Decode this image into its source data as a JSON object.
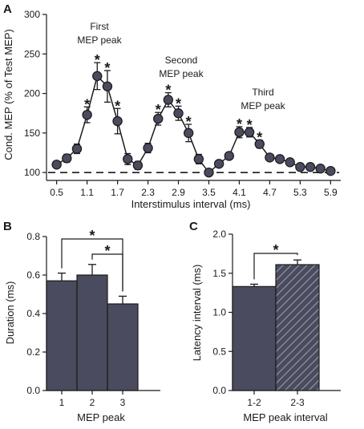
{
  "chart_data": [
    {
      "panel": "A",
      "type": "line",
      "xlabel": "Interstimulus interval (ms)",
      "ylabel": "Cond. MEP (% of Test MEP)",
      "xlim": [
        0.3,
        6.1
      ],
      "ylim": [
        90,
        300
      ],
      "xticks": [
        "0.5",
        "1.1",
        "1.7",
        "2.3",
        "2.9",
        "3.5",
        "4.1",
        "4.7",
        "5.3",
        "5.9"
      ],
      "yticks": [
        "100",
        "150",
        "200",
        "250",
        "300"
      ],
      "baseline": 100,
      "x": [
        0.5,
        0.7,
        0.9,
        1.1,
        1.3,
        1.5,
        1.7,
        1.9,
        2.1,
        2.3,
        2.5,
        2.7,
        2.9,
        3.1,
        3.3,
        3.5,
        3.7,
        3.9,
        4.1,
        4.3,
        4.5,
        4.7,
        4.9,
        5.1,
        5.3,
        5.5,
        5.7,
        5.9
      ],
      "y": [
        110,
        118,
        130,
        173,
        222,
        209,
        165,
        117,
        109,
        131,
        168,
        192,
        175,
        150,
        117,
        100,
        111,
        121,
        151,
        151,
        136,
        119,
        117,
        113,
        107,
        107,
        105,
        102
      ],
      "err": [
        4,
        5,
        6,
        10,
        17,
        20,
        16,
        7,
        5,
        6,
        8,
        9,
        9,
        11,
        6,
        3,
        4,
        4,
        7,
        6,
        5,
        3,
        3,
        4,
        4,
        3,
        3,
        3
      ],
      "significant": [
        false,
        false,
        false,
        true,
        true,
        true,
        true,
        false,
        false,
        false,
        true,
        true,
        true,
        true,
        false,
        false,
        false,
        false,
        true,
        true,
        true,
        false,
        false,
        false,
        false,
        false,
        false,
        false
      ],
      "annotations": [
        "First",
        "MEP peak",
        "Second",
        "MEP peak",
        "Third",
        "MEP peak"
      ],
      "star": "*"
    },
    {
      "panel": "B",
      "type": "bar",
      "categories": [
        "1",
        "2",
        "3"
      ],
      "values": [
        0.57,
        0.6,
        0.45
      ],
      "err": [
        0.04,
        0.055,
        0.04
      ],
      "xlabel": "MEP peak",
      "ylabel": "Duration (ms)",
      "ylim": [
        0,
        0.8
      ],
      "yticks": [
        "0.0",
        "0.2",
        "0.4",
        "0.6",
        "0.8"
      ],
      "bar_color": "#4a4b5e",
      "significance": [
        {
          "from": 0,
          "to": 2,
          "label": "*"
        },
        {
          "from": 1,
          "to": 2,
          "label": "*"
        }
      ]
    },
    {
      "panel": "C",
      "type": "bar",
      "categories": [
        "1-2",
        "2-3"
      ],
      "values": [
        1.33,
        1.61
      ],
      "err": [
        0.03,
        0.06
      ],
      "xlabel": "MEP peak interval",
      "ylabel": "Latency interval (ms)",
      "ylim": [
        0,
        2.0
      ],
      "yticks": [
        "0.0",
        "0.5",
        "1.0",
        "1.5",
        "2.0"
      ],
      "bar_color": "#4a4b5e",
      "hatched": [
        false,
        true
      ],
      "significance": [
        {
          "from": 0,
          "to": 1,
          "label": "*"
        }
      ]
    }
  ],
  "panel_letters": [
    "A",
    "B",
    "C"
  ]
}
